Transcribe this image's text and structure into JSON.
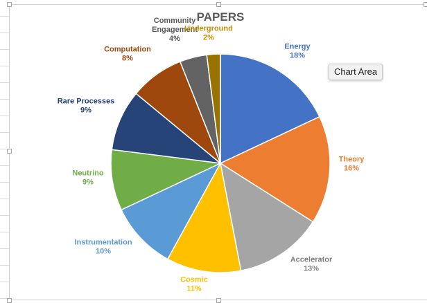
{
  "chart_data": {
    "type": "pie",
    "title": "PAPERS",
    "slices": [
      {
        "name": "Energy",
        "label": "18%",
        "value": 18,
        "color": "#4472C4"
      },
      {
        "name": "Theory",
        "label": "16%",
        "value": 16,
        "color": "#ED7D31"
      },
      {
        "name": "Accelerator",
        "label": "13%",
        "value": 13,
        "color": "#A5A5A5"
      },
      {
        "name": "Cosmic",
        "label": "11%",
        "value": 11,
        "color": "#FFC000"
      },
      {
        "name": "Instrumentation",
        "label": "10%",
        "value": 10,
        "color": "#5B9BD5"
      },
      {
        "name": "Neutrino",
        "label": "9%",
        "value": 9,
        "color": "#70AD47"
      },
      {
        "name": "Rare Processes",
        "label": "9%",
        "value": 9,
        "color": "#264478"
      },
      {
        "name": "Computation",
        "label": "8%",
        "value": 8,
        "color": "#9E480E"
      },
      {
        "name": "Community Engagement",
        "label": "4%",
        "value": 4,
        "color": "#636363"
      },
      {
        "name": "Underground",
        "label": "2%",
        "value": 2,
        "color": "#997300"
      }
    ],
    "data_labels": "outside",
    "legend": "none"
  },
  "tooltip": {
    "text": "Chart Area"
  },
  "colors": {
    "title": "#595959",
    "label_accelerator": "#7F7F7F",
    "label_underground": "#BF9000",
    "label_cosmic": "#FFC000",
    "label_community": "#595959"
  }
}
